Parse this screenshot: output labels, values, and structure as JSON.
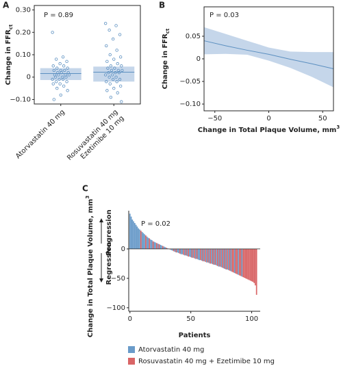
{
  "chart_data": [
    {
      "type": "strip",
      "panel": "A",
      "ylabel": "Change in FFR",
      "ylabel_sub": "ct",
      "annotation": "P = 0.89",
      "categories": [
        [
          "Atorvastatin 40 mg"
        ],
        [
          "Rosuvastatin 40 mg",
          "Ezetimibe 10 mg"
        ]
      ],
      "color": "#5b8fc0",
      "band_color": "#c5d6ea",
      "points": [
        [
          0.2,
          0.09,
          0.08,
          0.07,
          0.06,
          0.05,
          0.05,
          0.04,
          0.04,
          0.03,
          0.03,
          0.03,
          0.02,
          0.02,
          0.02,
          0.01,
          0.01,
          0.01,
          0.01,
          0.0,
          0.0,
          0.0,
          -0.01,
          -0.01,
          -0.01,
          -0.02,
          -0.02,
          -0.03,
          -0.03,
          -0.04,
          -0.05,
          -0.06,
          -0.08,
          -0.1
        ],
        [
          0.24,
          0.23,
          0.21,
          0.19,
          0.17,
          0.14,
          0.12,
          0.1,
          0.09,
          0.08,
          0.07,
          0.06,
          0.05,
          0.05,
          0.04,
          0.04,
          0.03,
          0.03,
          0.03,
          0.02,
          0.02,
          0.02,
          0.01,
          0.01,
          0.0,
          0.0,
          -0.01,
          -0.01,
          -0.02,
          -0.02,
          -0.03,
          -0.04,
          -0.05,
          -0.06,
          -0.07,
          -0.09,
          -0.11
        ]
      ],
      "mean": [
        0.016,
        0.022
      ],
      "ci_low": [
        -0.013,
        -0.02
      ],
      "ci_high": [
        0.04,
        0.047
      ],
      "ylim": [
        -0.12,
        0.32
      ],
      "yticks": [
        {
          "value": -0.1,
          "label": "−0.10"
        },
        0,
        {
          "value": 0.1,
          "label": "0.10"
        },
        {
          "value": 0.2,
          "label": "0.20"
        },
        {
          "value": 0.3,
          "label": "0.30"
        }
      ]
    },
    {
      "type": "fit",
      "panel": "B",
      "ylabel": "Change in FFR",
      "ylabel_sub": "ct",
      "xlabel": "Change in Total Plaque Volume, mm",
      "xlabel_sup": "3",
      "annotation": "P = 0.03",
      "color": "#5b8fc0",
      "band_color": "#c5d6ea",
      "x": [
        -60,
        -40,
        -20,
        0,
        20,
        40,
        60
      ],
      "fit": [
        0.04,
        0.029,
        0.019,
        0.01,
        -0.001,
        -0.011,
        -0.022
      ],
      "upper": [
        0.07,
        0.055,
        0.04,
        0.025,
        0.016,
        0.015,
        0.015
      ],
      "lower": [
        0.01,
        0.011,
        0.009,
        -0.004,
        -0.02,
        -0.04,
        -0.063
      ],
      "xlim": [
        -60,
        60
      ],
      "xticks": [
        {
          "value": -50,
          "label": "−50"
        },
        0,
        50
      ],
      "ylim": [
        -0.115,
        0.115
      ],
      "yticks": [
        {
          "value": -0.1,
          "label": "−0.10"
        },
        {
          "value": -0.05,
          "label": "−0.05"
        },
        0,
        0.05
      ]
    },
    {
      "type": "waterfall",
      "panel": "C",
      "ylabel": "Change in Total Plaque Volume, mm",
      "ylabel_sup": "3",
      "xlabel": "Patients",
      "annotation": "P = 0.02",
      "up_label": "Progression",
      "down_label": "Regression",
      "series": [
        {
          "name": "Atorvastatin 40 mg",
          "color": "#6a9bc9",
          "x": [
            0,
            1,
            2,
            3,
            4,
            5,
            6,
            7,
            8,
            10,
            11,
            12,
            14,
            15,
            17,
            18,
            20,
            21,
            23,
            25,
            26,
            28,
            29,
            31,
            32,
            34,
            35,
            37,
            39,
            40,
            42,
            43,
            45,
            47,
            49,
            50,
            52,
            54,
            56,
            57,
            59,
            61,
            63,
            65,
            67,
            69,
            71,
            73,
            75,
            77,
            79,
            81,
            83,
            86,
            89,
            92
          ],
          "values": [
            60,
            55,
            50,
            47,
            44,
            41,
            38,
            35,
            33,
            29,
            27,
            25,
            21,
            19,
            16,
            15,
            12,
            11,
            9,
            7,
            6,
            4,
            3,
            1,
            0,
            -2,
            -3,
            -5,
            -6,
            -7,
            -9,
            -9,
            -11,
            -12,
            -13,
            -14,
            -15,
            -17,
            -18,
            -19,
            -20,
            -21,
            -23,
            -24,
            -25,
            -27,
            -28,
            -30,
            -31,
            -33,
            -35,
            -36,
            -38,
            -41,
            -44,
            -47
          ]
        },
        {
          "name": "Rosuvastatin 40 mg + Ezetimibe 10 mg",
          "color": "#d96566",
          "x": [
            9,
            13,
            16,
            19,
            22,
            24,
            27,
            30,
            33,
            36,
            38,
            41,
            44,
            46,
            48,
            51,
            53,
            55,
            58,
            60,
            62,
            64,
            66,
            68,
            70,
            72,
            74,
            76,
            78,
            80,
            82,
            84,
            85,
            87,
            88,
            90,
            91,
            93,
            94,
            95,
            96,
            97,
            98,
            99,
            100,
            101,
            102,
            103,
            104
          ],
          "values": [
            31,
            23,
            18,
            13,
            10,
            8,
            5,
            2,
            -1,
            -4,
            -6,
            -8,
            -10,
            -11,
            -13,
            -15,
            -16,
            -17,
            -19,
            -21,
            -22,
            -23,
            -25,
            -26,
            -27,
            -29,
            -30,
            -32,
            -34,
            -35,
            -37,
            -39,
            -40,
            -42,
            -43,
            -45,
            -46,
            -48,
            -49,
            -50,
            -51,
            -52,
            -53,
            -54,
            -55,
            -56,
            -58,
            -62,
            -78
          ]
        }
      ],
      "xlim": [
        -1,
        107
      ],
      "xticks": [
        0,
        50,
        100
      ],
      "ylim": [
        -106,
        65
      ],
      "yticks": [
        {
          "value": -100,
          "label": "−100"
        },
        {
          "value": -50,
          "label": "−50"
        },
        0
      ]
    }
  ]
}
